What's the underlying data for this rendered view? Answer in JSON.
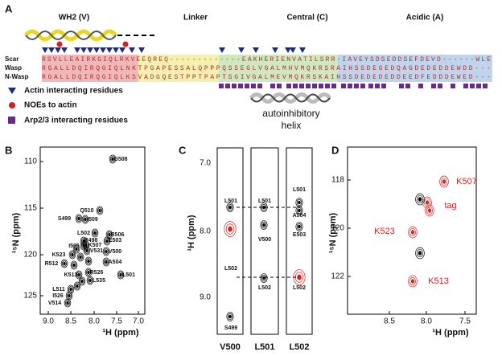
{
  "panel_a": {
    "label": "A",
    "domains": [
      "WH2 (V)",
      "Linker",
      "Central (C)",
      "Acidic (A)"
    ],
    "rows": [
      {
        "name": "Scar",
        "sequence": "RSVLLEAIRKGIQLRKVEEQREQ-------------EAKHERIENVATILSRR-IAVEYSDSEDDSEFDEVD------WLE"
      },
      {
        "name": "Wasp",
        "sequence": "RGALLDQIRQGIQLNKTPGAPESSALQPPPQSSEGLVGALMHVMQKRSRAIHSSDEGEDQAGDEDEDDEWDD---"
      },
      {
        "name": "N-Wasp",
        "sequence": "RGALLDQIRQGIQLKSVADGQESTPPTPAPTSGIVGALMEVMQKRSKAIHSSDEDEDEDDEEDFEDDDEWED---"
      }
    ],
    "legend": [
      "Actin interacting residues",
      "NOEs to actin",
      "Arp2/3 interacting residues"
    ],
    "helix_label": [
      "autoinhibitory",
      "helix"
    ]
  },
  "panel_b": {
    "label": "B",
    "x_label": "¹H (ppm)",
    "y_label": "¹⁵N (ppm)",
    "x_ticks": [
      "9.0",
      "8.5",
      "8.0",
      "7.5",
      "7.0"
    ],
    "y_ticks": [
      "110",
      "115",
      "120",
      "125"
    ],
    "peaks": [
      "G508",
      "Q510",
      "I509",
      "S499",
      "L502",
      "R506",
      "E503",
      "R498",
      "K507",
      "I505",
      "V531",
      "V500",
      "K523",
      "A504",
      "R512",
      "R526",
      "K513",
      "L535",
      "L501",
      "L511",
      "I526",
      "V514"
    ]
  },
  "panel_c": {
    "label": "C",
    "y_label": "¹H (ppm)",
    "y_ticks": [
      "7.0",
      "8.0",
      "9.0"
    ],
    "strips": [
      {
        "name": "V500",
        "peaks": [
          "L501",
          "L502",
          "S499"
        ]
      },
      {
        "name": "L501",
        "peaks": [
          "L501",
          "V500",
          "L502"
        ]
      },
      {
        "name": "L502",
        "peaks": [
          "L501",
          "A504",
          "E503",
          "L502"
        ]
      }
    ]
  },
  "panel_d": {
    "label": "D",
    "x_label": "¹H (ppm)",
    "y_label": "¹⁵N (ppm)",
    "x_ticks": [
      "8.5",
      "8.0",
      "7.5"
    ],
    "y_ticks": [
      "118",
      "120",
      "122"
    ],
    "peaks": [
      "K507",
      "tag",
      "K523",
      "K513"
    ]
  }
}
